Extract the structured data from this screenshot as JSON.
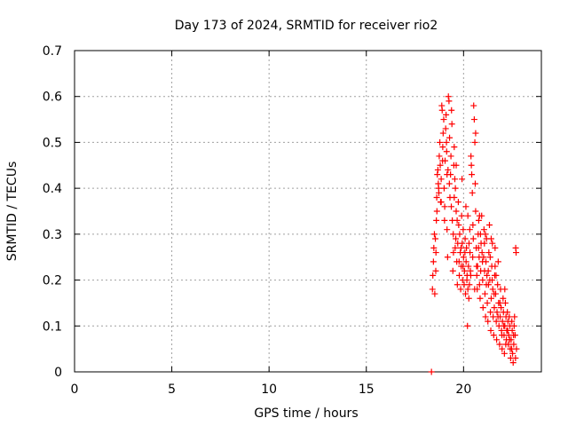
{
  "chart_data": {
    "type": "scatter",
    "title": "Day 173 of 2024, SRMTID for receiver rio2",
    "xlabel": "GPS time / hours",
    "ylabel": "SRMTID / TECUs",
    "xlim": [
      0,
      24
    ],
    "ylim": [
      0,
      0.7
    ],
    "x_ticks": [
      0,
      5,
      10,
      15,
      20
    ],
    "y_ticks": [
      0,
      0.1,
      0.2,
      0.3,
      0.4,
      0.5,
      0.6,
      0.7
    ],
    "x_tick_labels": [
      "0",
      "5",
      "10",
      "15",
      "20"
    ],
    "y_tick_labels": [
      "0",
      "0.1",
      "0.2",
      "0.3",
      "0.4",
      "0.5",
      "0.6",
      "0.7"
    ],
    "grid": true,
    "marker": "+",
    "color": "#ff0000",
    "series": [
      {
        "name": "SRMTID",
        "points": [
          [
            18.35,
            0.0
          ],
          [
            18.4,
            0.18
          ],
          [
            18.42,
            0.21
          ],
          [
            18.45,
            0.24
          ],
          [
            18.47,
            0.27
          ],
          [
            18.5,
            0.3
          ],
          [
            18.52,
            0.17
          ],
          [
            18.55,
            0.29
          ],
          [
            18.57,
            0.22
          ],
          [
            18.6,
            0.33
          ],
          [
            18.62,
            0.38
          ],
          [
            18.65,
            0.43
          ],
          [
            18.68,
            0.44
          ],
          [
            18.7,
            0.41
          ],
          [
            18.73,
            0.39
          ],
          [
            18.75,
            0.47
          ],
          [
            18.78,
            0.5
          ],
          [
            18.8,
            0.45
          ],
          [
            18.82,
            0.37
          ],
          [
            18.85,
            0.42
          ],
          [
            18.88,
            0.58
          ],
          [
            18.9,
            0.57
          ],
          [
            18.93,
            0.49
          ],
          [
            18.95,
            0.52
          ],
          [
            18.98,
            0.55
          ],
          [
            19.0,
            0.4
          ],
          [
            19.03,
            0.36
          ],
          [
            19.05,
            0.46
          ],
          [
            19.08,
            0.53
          ],
          [
            19.1,
            0.56
          ],
          [
            19.13,
            0.48
          ],
          [
            19.15,
            0.31
          ],
          [
            19.18,
            0.25
          ],
          [
            19.2,
            0.44
          ],
          [
            19.22,
            0.6
          ],
          [
            19.25,
            0.59
          ],
          [
            19.28,
            0.51
          ],
          [
            19.3,
            0.38
          ],
          [
            19.33,
            0.43
          ],
          [
            19.35,
            0.47
          ],
          [
            19.38,
            0.57
          ],
          [
            19.4,
            0.54
          ],
          [
            19.42,
            0.33
          ],
          [
            19.45,
            0.22
          ],
          [
            19.48,
            0.26
          ],
          [
            19.5,
            0.45
          ],
          [
            19.52,
            0.49
          ],
          [
            19.55,
            0.42
          ],
          [
            19.58,
            0.4
          ],
          [
            19.6,
            0.29
          ],
          [
            19.62,
            0.35
          ],
          [
            19.65,
            0.24
          ],
          [
            19.68,
            0.19
          ],
          [
            19.7,
            0.28
          ],
          [
            19.73,
            0.37
          ],
          [
            19.75,
            0.32
          ],
          [
            19.78,
            0.21
          ],
          [
            19.8,
            0.3
          ],
          [
            19.83,
            0.26
          ],
          [
            19.85,
            0.18
          ],
          [
            19.88,
            0.23
          ],
          [
            19.9,
            0.34
          ],
          [
            19.93,
            0.28
          ],
          [
            19.95,
            0.2
          ],
          [
            19.98,
            0.31
          ],
          [
            20.0,
            0.25
          ],
          [
            20.03,
            0.19
          ],
          [
            20.05,
            0.22
          ],
          [
            20.08,
            0.29
          ],
          [
            20.1,
            0.17
          ],
          [
            20.13,
            0.24
          ],
          [
            20.15,
            0.27
          ],
          [
            20.18,
            0.21
          ],
          [
            20.2,
            0.1
          ],
          [
            20.22,
            0.18
          ],
          [
            20.25,
            0.23
          ],
          [
            20.28,
            0.28
          ],
          [
            20.3,
            0.19
          ],
          [
            20.33,
            0.26
          ],
          [
            20.35,
            0.22
          ],
          [
            20.38,
            0.47
          ],
          [
            20.4,
            0.45
          ],
          [
            20.42,
            0.43
          ],
          [
            20.45,
            0.39
          ],
          [
            20.48,
            0.32
          ],
          [
            20.5,
            0.29
          ],
          [
            20.52,
            0.58
          ],
          [
            20.55,
            0.55
          ],
          [
            20.58,
            0.5
          ],
          [
            20.6,
            0.41
          ],
          [
            20.62,
            0.35
          ],
          [
            20.65,
            0.27
          ],
          [
            20.68,
            0.21
          ],
          [
            20.7,
            0.18
          ],
          [
            20.72,
            0.23
          ],
          [
            20.75,
            0.3
          ],
          [
            20.78,
            0.33
          ],
          [
            20.8,
            0.25
          ],
          [
            20.82,
            0.19
          ],
          [
            20.85,
            0.16
          ],
          [
            20.88,
            0.22
          ],
          [
            20.9,
            0.28
          ],
          [
            20.93,
            0.34
          ],
          [
            20.95,
            0.26
          ],
          [
            20.98,
            0.2
          ],
          [
            21.0,
            0.14
          ],
          [
            21.03,
            0.25
          ],
          [
            21.05,
            0.31
          ],
          [
            21.08,
            0.22
          ],
          [
            21.1,
            0.17
          ],
          [
            21.13,
            0.12
          ],
          [
            21.15,
            0.24
          ],
          [
            21.18,
            0.29
          ],
          [
            21.2,
            0.21
          ],
          [
            21.22,
            0.15
          ],
          [
            21.25,
            0.11
          ],
          [
            21.28,
            0.19
          ],
          [
            21.3,
            0.26
          ],
          [
            21.33,
            0.32
          ],
          [
            21.35,
            0.2
          ],
          [
            21.38,
            0.13
          ],
          [
            21.4,
            0.09
          ],
          [
            21.42,
            0.16
          ],
          [
            21.45,
            0.23
          ],
          [
            21.48,
            0.28
          ],
          [
            21.5,
            0.18
          ],
          [
            21.52,
            0.12
          ],
          [
            21.55,
            0.08
          ],
          [
            21.58,
            0.14
          ],
          [
            21.6,
            0.21
          ],
          [
            21.62,
            0.27
          ],
          [
            21.65,
            0.17
          ],
          [
            21.68,
            0.11
          ],
          [
            21.7,
            0.07
          ],
          [
            21.72,
            0.13
          ],
          [
            21.75,
            0.19
          ],
          [
            21.78,
            0.24
          ],
          [
            21.8,
            0.15
          ],
          [
            21.82,
            0.1
          ],
          [
            21.85,
            0.06
          ],
          [
            21.88,
            0.12
          ],
          [
            21.9,
            0.18
          ],
          [
            21.93,
            0.14
          ],
          [
            21.95,
            0.09
          ],
          [
            21.98,
            0.05
          ],
          [
            22.0,
            0.11
          ],
          [
            22.03,
            0.16
          ],
          [
            22.05,
            0.13
          ],
          [
            22.08,
            0.08
          ],
          [
            22.1,
            0.04
          ],
          [
            22.12,
            0.1
          ],
          [
            22.15,
            0.15
          ],
          [
            22.18,
            0.12
          ],
          [
            22.2,
            0.07
          ],
          [
            22.22,
            0.09
          ],
          [
            22.25,
            0.13
          ],
          [
            22.28,
            0.11
          ],
          [
            22.3,
            0.06
          ],
          [
            22.32,
            0.08
          ],
          [
            22.35,
            0.12
          ],
          [
            22.38,
            0.1
          ],
          [
            22.4,
            0.05
          ],
          [
            22.42,
            0.03
          ],
          [
            22.45,
            0.07
          ],
          [
            22.48,
            0.11
          ],
          [
            22.5,
            0.09
          ],
          [
            22.52,
            0.04
          ],
          [
            22.55,
            0.02
          ],
          [
            22.58,
            0.06
          ],
          [
            22.6,
            0.1
          ],
          [
            22.62,
            0.12
          ],
          [
            22.65,
            0.08
          ],
          [
            22.68,
            0.27
          ],
          [
            22.7,
            0.26
          ],
          [
            22.72,
            0.05
          ],
          [
            18.58,
            0.26
          ],
          [
            18.63,
            0.35
          ],
          [
            18.72,
            0.4
          ],
          [
            18.92,
            0.46
          ],
          [
            19.12,
            0.5
          ],
          [
            19.27,
            0.41
          ],
          [
            19.37,
            0.36
          ],
          [
            19.47,
            0.3
          ],
          [
            19.57,
            0.27
          ],
          [
            19.67,
            0.33
          ],
          [
            19.77,
            0.24
          ],
          [
            19.87,
            0.27
          ],
          [
            19.97,
            0.23
          ],
          [
            20.07,
            0.26
          ],
          [
            20.17,
            0.2
          ],
          [
            20.27,
            0.16
          ],
          [
            20.37,
            0.21
          ],
          [
            20.47,
            0.25
          ],
          [
            20.57,
            0.18
          ],
          [
            20.67,
            0.23
          ],
          [
            20.77,
            0.27
          ],
          [
            20.87,
            0.3
          ],
          [
            20.97,
            0.24
          ],
          [
            21.07,
            0.28
          ],
          [
            21.17,
            0.19
          ],
          [
            21.27,
            0.22
          ],
          [
            21.37,
            0.25
          ],
          [
            21.47,
            0.2
          ],
          [
            21.57,
            0.17
          ],
          [
            21.67,
            0.21
          ],
          [
            21.77,
            0.12
          ],
          [
            21.87,
            0.15
          ],
          [
            21.97,
            0.08
          ],
          [
            22.07,
            0.1
          ],
          [
            22.17,
            0.06
          ],
          [
            22.27,
            0.09
          ],
          [
            22.37,
            0.07
          ],
          [
            22.47,
            0.05
          ],
          [
            22.57,
            0.08
          ],
          [
            22.67,
            0.03
          ],
          [
            20.12,
            0.36
          ],
          [
            20.22,
            0.34
          ],
          [
            20.32,
            0.31
          ],
          [
            19.02,
            0.33
          ],
          [
            19.52,
            0.38
          ],
          [
            21.12,
            0.3
          ],
          [
            21.62,
            0.23
          ],
          [
            22.12,
            0.18
          ],
          [
            21.42,
            0.29
          ],
          [
            20.82,
            0.34
          ],
          [
            19.92,
            0.42
          ],
          [
            19.62,
            0.45
          ],
          [
            20.62,
            0.52
          ],
          [
            18.85,
            0.37
          ],
          [
            19.15,
            0.43
          ]
        ]
      }
    ]
  }
}
